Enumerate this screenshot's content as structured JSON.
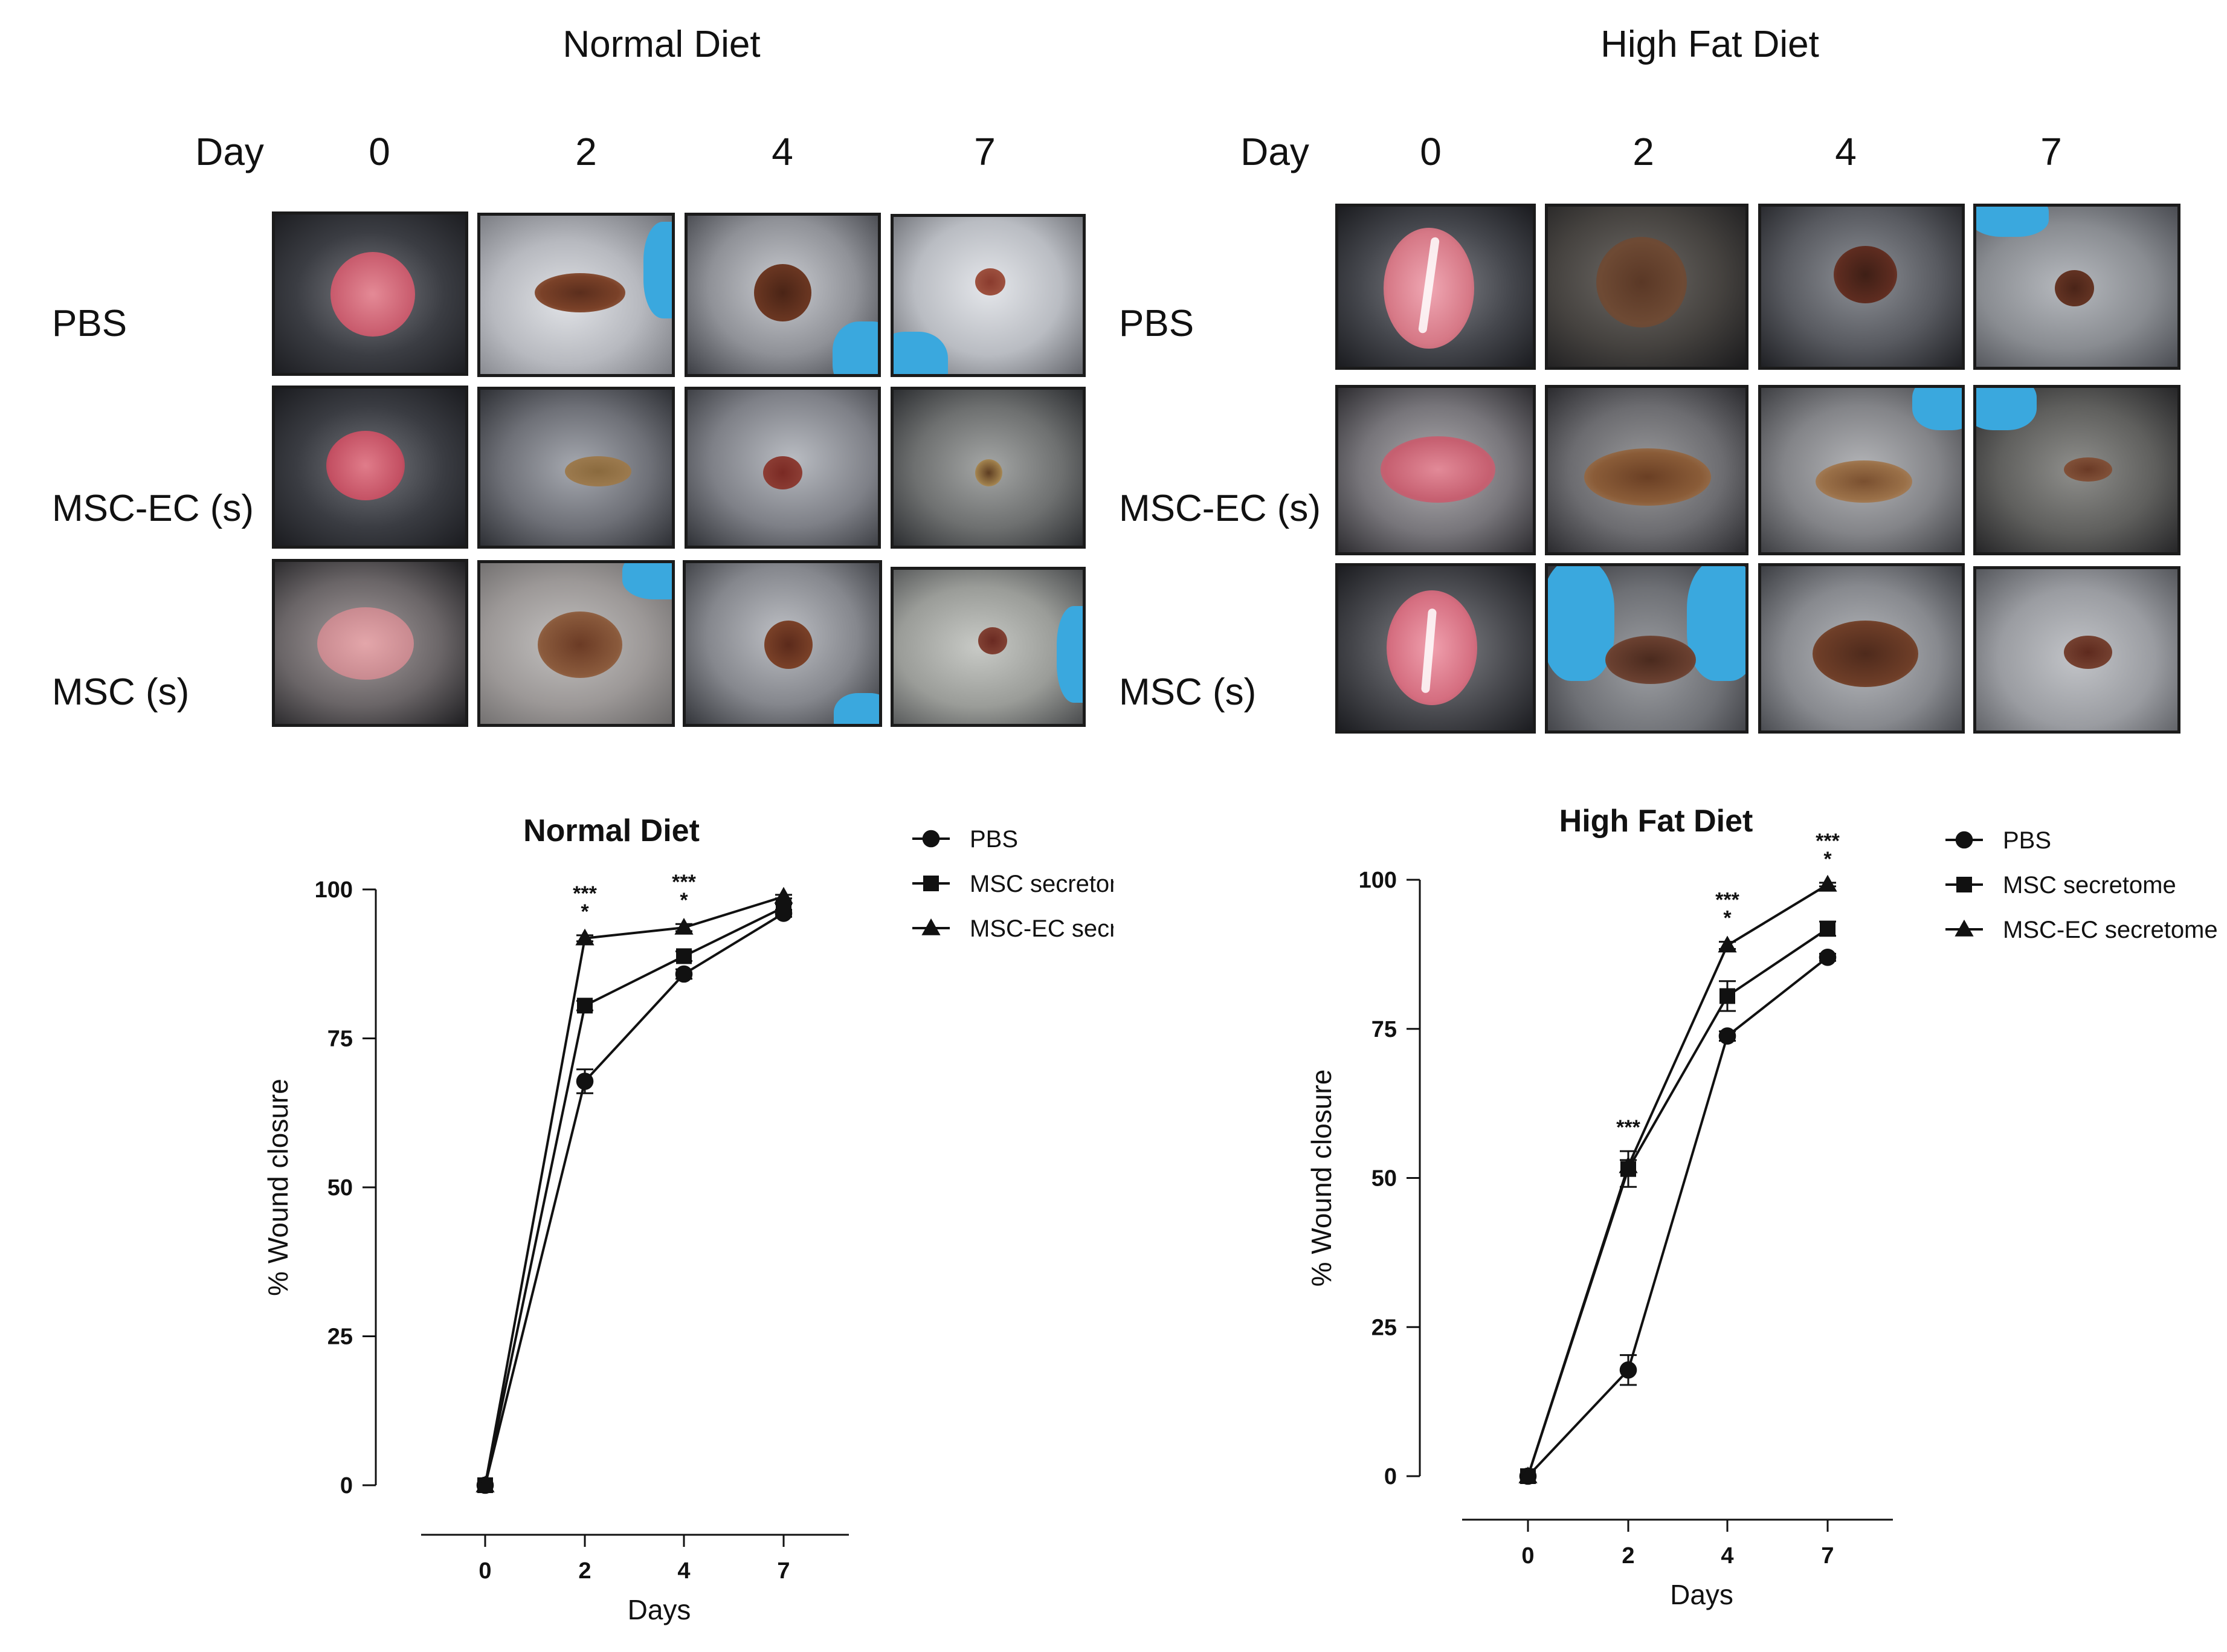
{
  "photo_panels": {
    "left": {
      "title": "Normal Diet",
      "day_header": "Day",
      "days": [
        "0",
        "2",
        "4",
        "7"
      ],
      "rows": [
        "PBS",
        "MSC-EC (s)",
        "MSC (s)"
      ]
    },
    "right": {
      "title": "High Fat Diet",
      "day_header": "Day",
      "days": [
        "0",
        "2",
        "4",
        "7"
      ],
      "rows": [
        "PBS",
        "MSC-EC (s)",
        "MSC (s)"
      ]
    }
  },
  "colors": {
    "line": "#111111",
    "wound_fresh": "#d9707e",
    "wound_scab": "#6e3a22",
    "fur_light": "#b9bcc4",
    "fur_dark": "#2b2d33",
    "glove": "#3aa8de"
  },
  "chart_data": [
    {
      "type": "line",
      "title": "Normal Diet",
      "xlabel": "Days",
      "ylabel": "% Wound closure",
      "categories": [
        "0",
        "2",
        "4",
        "7"
      ],
      "yticks": [
        "0",
        "25",
        "50",
        "75",
        "100"
      ],
      "ylim": [
        0,
        100
      ],
      "legend": "right",
      "series": [
        {
          "name": "PBS",
          "marker": "circle",
          "values": [
            0,
            67.8,
            85.8,
            96.0
          ],
          "errors": [
            0,
            2.0,
            0.8,
            0.6
          ]
        },
        {
          "name": "MSC secretome",
          "marker": "square",
          "values": [
            0,
            80.5,
            88.8,
            97.0
          ],
          "errors": [
            0,
            0.8,
            0.8,
            0.5
          ]
        },
        {
          "name": "MSC-EC secretome",
          "marker": "triangle",
          "values": [
            0,
            91.8,
            93.6,
            98.8
          ],
          "errors": [
            0,
            0.5,
            0.6,
            0.3
          ]
        }
      ],
      "annotations": [
        {
          "category": "2",
          "lines": [
            "***",
            "*"
          ]
        },
        {
          "category": "4",
          "lines": [
            "***",
            "*"
          ]
        }
      ]
    },
    {
      "type": "line",
      "title": "High Fat Diet",
      "xlabel": "Days",
      "ylabel": "% Wound closure",
      "categories": [
        "0",
        "2",
        "4",
        "7"
      ],
      "yticks": [
        "0",
        "25",
        "50",
        "75",
        "100"
      ],
      "ylim": [
        0,
        100
      ],
      "legend": "right",
      "series": [
        {
          "name": "PBS",
          "marker": "circle",
          "values": [
            0,
            17.8,
            73.8,
            87.0
          ],
          "errors": [
            0,
            2.5,
            0.8,
            0.6
          ]
        },
        {
          "name": "MSC secretome",
          "marker": "square",
          "values": [
            0,
            51.5,
            80.5,
            91.8
          ],
          "errors": [
            0,
            3.0,
            2.5,
            1.2
          ]
        },
        {
          "name": "MSC-EC secretome",
          "marker": "triangle",
          "values": [
            0,
            52.0,
            89.0,
            99.2
          ],
          "errors": [
            0,
            1.0,
            0.6,
            0.3
          ]
        }
      ],
      "annotations": [
        {
          "category": "2",
          "lines": [
            "***"
          ]
        },
        {
          "category": "4",
          "lines": [
            "***",
            "*"
          ]
        },
        {
          "category": "7",
          "lines": [
            "***",
            "*"
          ]
        }
      ]
    }
  ]
}
